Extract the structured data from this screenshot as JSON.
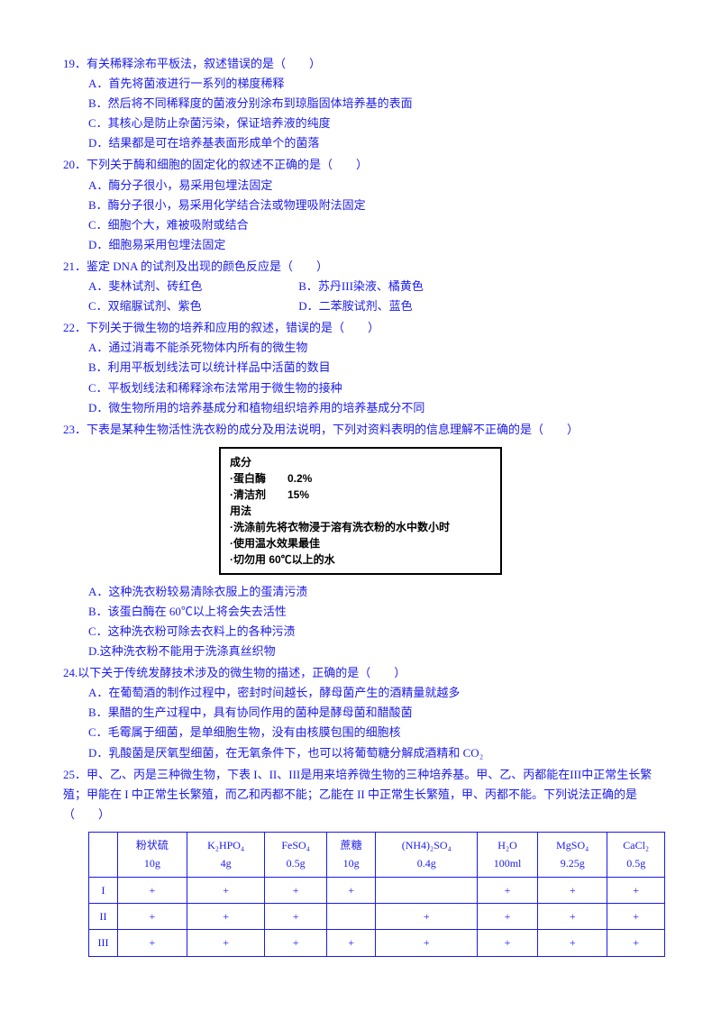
{
  "q19": {
    "stem": "19．有关稀释涂布平板法，叙述错误的是（　　）",
    "A": "A．首先将菌液进行一系列的梯度稀释",
    "B": "B．然后将不同稀释度的菌液分别涂布到琼脂固体培养基的表面",
    "C": "C．其核心是防止杂菌污染，保证培养液的纯度",
    "D": "D．结果都是可在培养基表面形成单个的菌落"
  },
  "q20": {
    "stem": "20．下列关于酶和细胞的固定化的叙述不正确的是（　　）",
    "A": "A．酶分子很小，易采用包埋法固定",
    "B": "B．酶分子很小，易采用化学结合法或物理吸附法固定",
    "C": "C．细胞个大，难被吸附或结合",
    "D": "D．细胞易采用包埋法固定"
  },
  "q21": {
    "stem": "21．鉴定 DNA 的试剂及出现的颜色反应是（　　）",
    "A": "A．斐林试剂、砖红色",
    "B": "B．苏丹III染液、橘黄色",
    "C": "C．双缩脲试剂、紫色",
    "D": "D．二苯胺试剂、蓝色"
  },
  "q22": {
    "stem": "22．下列关于微生物的培养和应用的叙述，错误的是（　　）",
    "A": "A．通过消毒不能杀死物体内所有的微生物",
    "B": "B．利用平板划线法可以统计样品中活菌的数目",
    "C": "C．平板划线法和稀释涂布法常用于微生物的接种",
    "D": "D．微生物所用的培养基成分和植物组织培养用的培养基成分不同"
  },
  "q23": {
    "stem": "23．下表是某种生物活性洗衣粉的成分及用法说明，下列对资料表明的信息理解不正确的是（　　）",
    "box": {
      "l1": "成分",
      "l2": "·蛋白酶　　0.2%",
      "l3": "·清洁剂　　15%",
      "l4": "用法",
      "l5": "·洗涤前先将衣物浸于溶有洗衣粉的水中数小时",
      "l6": "·使用温水效果最佳",
      "l7": "·切勿用 60℃以上的水"
    },
    "A": "A．这种洗衣粉较易清除衣服上的蛋清污渍",
    "B": "B．该蛋白酶在 60℃以上将会失去活性",
    "C": "C．这种洗衣粉可除去衣料上的各种污渍",
    "D": "D.这种洗衣粉不能用于洗涤真丝织物"
  },
  "q24": {
    "stem": "24.以下关于传统发酵技术涉及的微生物的描述，正确的是（　　）",
    "A": "A．在葡萄酒的制作过程中，密封时间越长，酵母菌产生的酒精量就越多",
    "B": "B．果醋的生产过程中，具有协同作用的菌种是酵母菌和醋酸菌",
    "C": "C．毛霉属于细菌，是单细胞生物，没有由核膜包围的细胞核",
    "D": "D．乳酸菌是厌氧型细菌，在无氧条件下，也可以将葡萄糖分解成酒精和 CO₂"
  },
  "q25": {
    "stem1": "25．甲、乙、丙是三种微生物，下表 I、II、III是用来培养微生物的三种培养基。甲、乙、丙都能在III中正常生长繁殖；甲能在 I 中正常生长繁殖，而乙和丙都不能；乙能在 II 中正常生长繁殖，甲、丙都不能。下列说法正确的是（　　）",
    "headers": [
      {
        "t1": "粉状硫",
        "t2": "10g"
      },
      {
        "t1": "K₂HPO₄",
        "t2": "4g"
      },
      {
        "t1": "FeSO₄",
        "t2": "0.5g"
      },
      {
        "t1": "蔗糖",
        "t2": "10g"
      },
      {
        "t1": "(NH4)₂SO₄",
        "t2": "0.4g"
      },
      {
        "t1": "H₂O",
        "t2": "100ml"
      },
      {
        "t1": "MgSO₄",
        "t2": "9.25g"
      },
      {
        "t1": "CaCl₂",
        "t2": "0.5g"
      }
    ],
    "rows": [
      {
        "label": "I",
        "cells": [
          "+",
          "+",
          "+",
          "+",
          "",
          "+",
          "+",
          "+"
        ]
      },
      {
        "label": "II",
        "cells": [
          "+",
          "+",
          "+",
          "",
          "+",
          "+",
          "+",
          "+"
        ]
      },
      {
        "label": "III",
        "cells": [
          "+",
          "+",
          "+",
          "+",
          "+",
          "+",
          "+",
          "+"
        ]
      }
    ]
  }
}
